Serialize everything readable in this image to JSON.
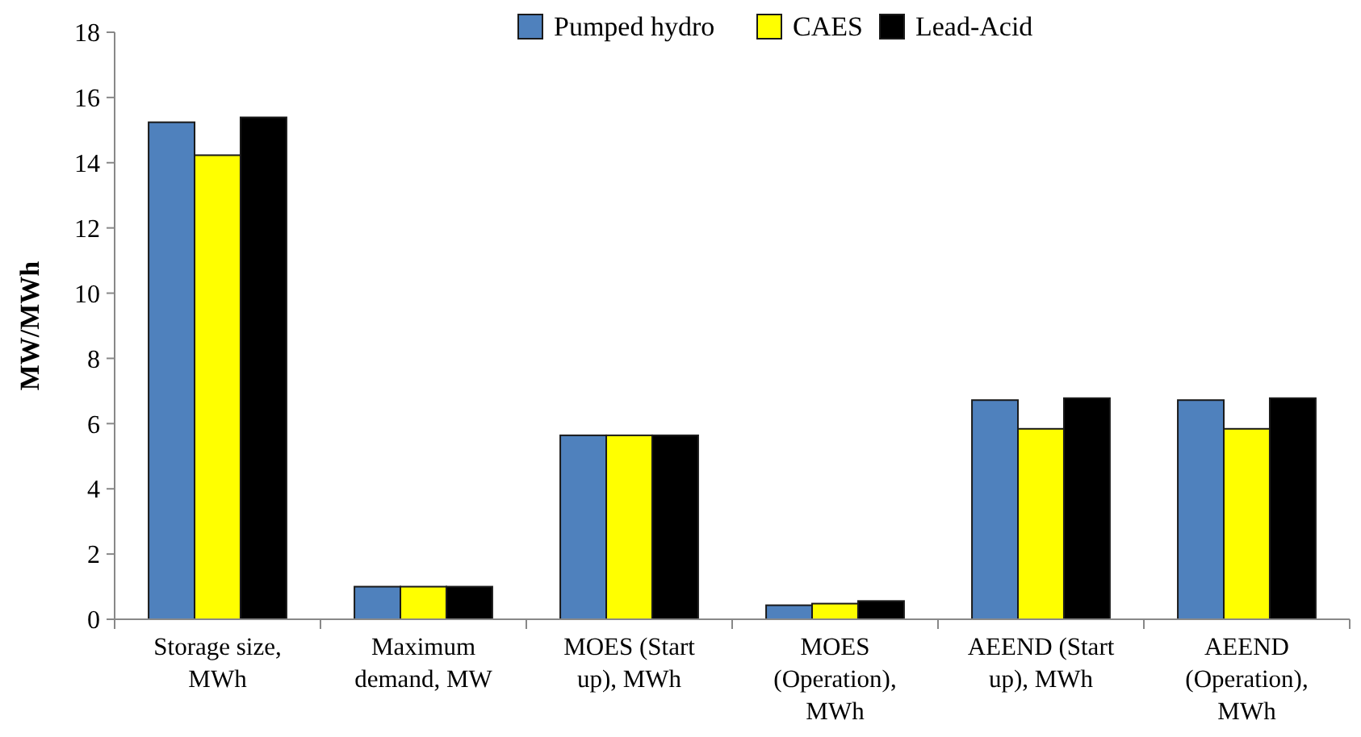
{
  "chart_data": {
    "type": "bar",
    "ylabel": "MW/MWh",
    "categories": [
      "Storage size, MWh",
      "Maximum demand, MW",
      "MOES (Start up), MWh",
      "MOES (Operation), MWh",
      "AEEND (Start up), MWh",
      "AEEND (Operation), MWh"
    ],
    "series": [
      {
        "name": "Pumped hydro",
        "color": "#4f81bd",
        "values": [
          15.24,
          1,
          5.64,
          0.43,
          6.72,
          6.72
        ]
      },
      {
        "name": "CAES",
        "color": "#ffff00",
        "values": [
          14.23,
          1,
          5.64,
          0.48,
          5.84,
          5.84
        ]
      },
      {
        "name": "Lead-Acid",
        "color": "#000000",
        "values": [
          15.39,
          1,
          5.64,
          0.56,
          6.78,
          6.78
        ]
      }
    ],
    "ylim": [
      0,
      18
    ],
    "yticks": [
      0,
      2,
      4,
      6,
      8,
      10,
      12,
      14,
      16,
      18
    ],
    "grid": false,
    "legend": "top"
  }
}
